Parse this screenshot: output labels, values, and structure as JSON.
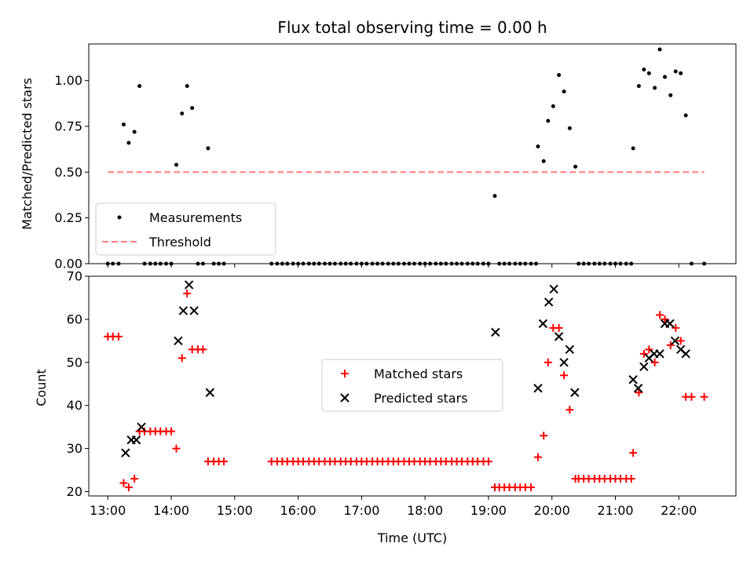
{
  "chart_data": [
    {
      "type": "scatter",
      "title": "Flux total observing time = 0.00 h",
      "ylabel": "Matched/Predicted stars",
      "xlabel": "",
      "x_unit": "time of day (h, UTC)",
      "xlim": [
        12.7,
        22.9
      ],
      "ylim": [
        0.0,
        1.2
      ],
      "yticks": [
        0.0,
        0.25,
        0.5,
        0.75,
        1.0
      ],
      "ytick_labels": [
        "0.00",
        "0.25",
        "0.50",
        "0.75",
        "1.00"
      ],
      "legend": "lower-left",
      "grid": false,
      "series": [
        {
          "name": "Measurements",
          "marker": "dot",
          "color": "#000000",
          "points": [
            [
              13.0,
              0.0
            ],
            [
              13.08,
              0.0
            ],
            [
              13.17,
              0.0
            ],
            [
              13.25,
              0.76
            ],
            [
              13.33,
              0.66
            ],
            [
              13.42,
              0.72
            ],
            [
              13.5,
              0.97
            ],
            [
              13.58,
              0.0
            ],
            [
              13.67,
              0.0
            ],
            [
              13.75,
              0.0
            ],
            [
              13.83,
              0.0
            ],
            [
              13.92,
              0.0
            ],
            [
              14.0,
              0.0
            ],
            [
              14.08,
              0.54
            ],
            [
              14.17,
              0.82
            ],
            [
              14.25,
              0.97
            ],
            [
              14.33,
              0.85
            ],
            [
              14.42,
              0.0
            ],
            [
              14.5,
              0.0
            ],
            [
              14.58,
              0.63
            ],
            [
              14.67,
              0.0
            ],
            [
              14.75,
              0.0
            ],
            [
              14.83,
              0.0
            ],
            [
              15.58,
              0.0
            ],
            [
              15.67,
              0.0
            ],
            [
              15.75,
              0.0
            ],
            [
              15.83,
              0.0
            ],
            [
              15.92,
              0.0
            ],
            [
              16.0,
              0.0
            ],
            [
              16.08,
              0.0
            ],
            [
              16.17,
              0.0
            ],
            [
              16.25,
              0.0
            ],
            [
              16.33,
              0.0
            ],
            [
              16.42,
              0.0
            ],
            [
              16.5,
              0.0
            ],
            [
              16.58,
              0.0
            ],
            [
              16.67,
              0.0
            ],
            [
              16.75,
              0.0
            ],
            [
              16.83,
              0.0
            ],
            [
              16.92,
              0.0
            ],
            [
              17.0,
              0.0
            ],
            [
              17.08,
              0.0
            ],
            [
              17.17,
              0.0
            ],
            [
              17.25,
              0.0
            ],
            [
              17.33,
              0.0
            ],
            [
              17.42,
              0.0
            ],
            [
              17.5,
              0.0
            ],
            [
              17.58,
              0.0
            ],
            [
              17.67,
              0.0
            ],
            [
              17.75,
              0.0
            ],
            [
              17.83,
              0.0
            ],
            [
              17.92,
              0.0
            ],
            [
              18.0,
              0.0
            ],
            [
              18.08,
              0.0
            ],
            [
              18.17,
              0.0
            ],
            [
              18.25,
              0.0
            ],
            [
              18.33,
              0.0
            ],
            [
              18.42,
              0.0
            ],
            [
              18.5,
              0.0
            ],
            [
              18.58,
              0.0
            ],
            [
              18.67,
              0.0
            ],
            [
              18.75,
              0.0
            ],
            [
              18.83,
              0.0
            ],
            [
              18.92,
              0.0
            ],
            [
              19.0,
              0.0
            ],
            [
              19.1,
              0.37
            ],
            [
              19.17,
              0.0
            ],
            [
              19.25,
              0.0
            ],
            [
              19.33,
              0.0
            ],
            [
              19.42,
              0.0
            ],
            [
              19.5,
              0.0
            ],
            [
              19.58,
              0.0
            ],
            [
              19.67,
              0.0
            ],
            [
              19.75,
              0.0
            ],
            [
              19.78,
              0.64
            ],
            [
              19.87,
              0.56
            ],
            [
              19.94,
              0.78
            ],
            [
              20.02,
              0.86
            ],
            [
              20.11,
              1.03
            ],
            [
              20.19,
              0.94
            ],
            [
              20.28,
              0.74
            ],
            [
              20.37,
              0.53
            ],
            [
              20.42,
              0.0
            ],
            [
              20.5,
              0.0
            ],
            [
              20.58,
              0.0
            ],
            [
              20.67,
              0.0
            ],
            [
              20.75,
              0.0
            ],
            [
              20.83,
              0.0
            ],
            [
              20.92,
              0.0
            ],
            [
              21.0,
              0.0
            ],
            [
              21.08,
              0.0
            ],
            [
              21.17,
              0.0
            ],
            [
              21.25,
              0.0
            ],
            [
              21.28,
              0.63
            ],
            [
              21.37,
              0.97
            ],
            [
              21.45,
              1.06
            ],
            [
              21.53,
              1.04
            ],
            [
              21.62,
              0.96
            ],
            [
              21.7,
              1.17
            ],
            [
              21.78,
              1.02
            ],
            [
              21.87,
              0.92
            ],
            [
              21.95,
              1.05
            ],
            [
              22.03,
              1.04
            ],
            [
              22.11,
              0.81
            ],
            [
              22.2,
              0.0
            ],
            [
              22.4,
              0.0
            ]
          ]
        },
        {
          "name": "Threshold",
          "style": "dashed",
          "color": "#ff7f7f",
          "x": [
            13.0,
            22.4
          ],
          "y": [
            0.5,
            0.5
          ]
        }
      ]
    },
    {
      "type": "scatter",
      "title": "",
      "xlabel": "Time (UTC)",
      "ylabel": "Count",
      "x_unit": "time of day (h, UTC)",
      "xlim": [
        12.7,
        22.9
      ],
      "ylim": [
        19,
        70
      ],
      "xticks": [
        13,
        14,
        15,
        16,
        17,
        18,
        19,
        20,
        21,
        22
      ],
      "xtick_labels": [
        "13:00",
        "14:00",
        "15:00",
        "16:00",
        "17:00",
        "18:00",
        "19:00",
        "20:00",
        "21:00",
        "22:00"
      ],
      "yticks": [
        20,
        30,
        40,
        50,
        60,
        70
      ],
      "ytick_labels": [
        "20",
        "30",
        "40",
        "50",
        "60",
        "70"
      ],
      "legend": "center",
      "grid": false,
      "series": [
        {
          "name": "Matched stars",
          "marker": "plus",
          "color": "#ff0000",
          "points": [
            [
              13.0,
              56
            ],
            [
              13.08,
              56
            ],
            [
              13.17,
              56
            ],
            [
              13.25,
              22
            ],
            [
              13.33,
              21
            ],
            [
              13.42,
              23
            ],
            [
              13.5,
              34
            ],
            [
              13.58,
              34
            ],
            [
              13.67,
              34
            ],
            [
              13.75,
              34
            ],
            [
              13.83,
              34
            ],
            [
              13.92,
              34
            ],
            [
              14.0,
              34
            ],
            [
              14.08,
              30
            ],
            [
              14.17,
              51
            ],
            [
              14.25,
              66
            ],
            [
              14.33,
              53
            ],
            [
              14.42,
              53
            ],
            [
              14.5,
              53
            ],
            [
              14.58,
              27
            ],
            [
              14.67,
              27
            ],
            [
              14.75,
              27
            ],
            [
              14.83,
              27
            ],
            [
              15.58,
              27
            ],
            [
              15.67,
              27
            ],
            [
              15.75,
              27
            ],
            [
              15.83,
              27
            ],
            [
              15.92,
              27
            ],
            [
              16.0,
              27
            ],
            [
              16.08,
              27
            ],
            [
              16.17,
              27
            ],
            [
              16.25,
              27
            ],
            [
              16.33,
              27
            ],
            [
              16.42,
              27
            ],
            [
              16.5,
              27
            ],
            [
              16.58,
              27
            ],
            [
              16.67,
              27
            ],
            [
              16.75,
              27
            ],
            [
              16.83,
              27
            ],
            [
              16.92,
              27
            ],
            [
              17.0,
              27
            ],
            [
              17.08,
              27
            ],
            [
              17.17,
              27
            ],
            [
              17.25,
              27
            ],
            [
              17.33,
              27
            ],
            [
              17.42,
              27
            ],
            [
              17.5,
              27
            ],
            [
              17.58,
              27
            ],
            [
              17.67,
              27
            ],
            [
              17.75,
              27
            ],
            [
              17.83,
              27
            ],
            [
              17.92,
              27
            ],
            [
              18.0,
              27
            ],
            [
              18.08,
              27
            ],
            [
              18.17,
              27
            ],
            [
              18.25,
              27
            ],
            [
              18.33,
              27
            ],
            [
              18.42,
              27
            ],
            [
              18.5,
              27
            ],
            [
              18.58,
              27
            ],
            [
              18.67,
              27
            ],
            [
              18.75,
              27
            ],
            [
              18.83,
              27
            ],
            [
              18.92,
              27
            ],
            [
              19.0,
              27
            ],
            [
              19.1,
              21
            ],
            [
              19.17,
              21
            ],
            [
              19.25,
              21
            ],
            [
              19.33,
              21
            ],
            [
              19.42,
              21
            ],
            [
              19.5,
              21
            ],
            [
              19.58,
              21
            ],
            [
              19.67,
              21
            ],
            [
              19.78,
              28
            ],
            [
              19.87,
              33
            ],
            [
              19.94,
              50
            ],
            [
              20.02,
              58
            ],
            [
              20.11,
              58
            ],
            [
              20.19,
              47
            ],
            [
              20.28,
              39
            ],
            [
              20.37,
              23
            ],
            [
              20.42,
              23
            ],
            [
              20.5,
              23
            ],
            [
              20.58,
              23
            ],
            [
              20.67,
              23
            ],
            [
              20.75,
              23
            ],
            [
              20.83,
              23
            ],
            [
              20.92,
              23
            ],
            [
              21.0,
              23
            ],
            [
              21.08,
              23
            ],
            [
              21.17,
              23
            ],
            [
              21.25,
              23
            ],
            [
              21.28,
              29
            ],
            [
              21.37,
              43
            ],
            [
              21.45,
              52
            ],
            [
              21.53,
              53
            ],
            [
              21.62,
              50
            ],
            [
              21.7,
              61
            ],
            [
              21.78,
              60
            ],
            [
              21.87,
              54
            ],
            [
              21.95,
              58
            ],
            [
              22.03,
              55
            ],
            [
              22.11,
              42
            ],
            [
              22.2,
              42
            ],
            [
              22.4,
              42
            ]
          ]
        },
        {
          "name": "Predicted stars",
          "marker": "x",
          "color": "#000000",
          "points": [
            [
              13.28,
              29
            ],
            [
              13.37,
              32
            ],
            [
              13.45,
              32
            ],
            [
              13.53,
              35
            ],
            [
              14.11,
              55
            ],
            [
              14.19,
              62
            ],
            [
              14.28,
              68
            ],
            [
              14.36,
              62
            ],
            [
              14.61,
              43
            ],
            [
              19.11,
              57
            ],
            [
              19.78,
              44
            ],
            [
              19.86,
              59
            ],
            [
              19.95,
              64
            ],
            [
              20.03,
              67
            ],
            [
              20.11,
              56
            ],
            [
              20.19,
              50
            ],
            [
              20.28,
              53
            ],
            [
              20.36,
              43
            ],
            [
              21.28,
              46
            ],
            [
              21.36,
              44
            ],
            [
              21.45,
              49
            ],
            [
              21.53,
              51
            ],
            [
              21.61,
              52
            ],
            [
              21.7,
              52
            ],
            [
              21.78,
              59
            ],
            [
              21.86,
              59
            ],
            [
              21.94,
              55
            ],
            [
              22.03,
              53
            ],
            [
              22.11,
              52
            ]
          ]
        }
      ]
    }
  ]
}
